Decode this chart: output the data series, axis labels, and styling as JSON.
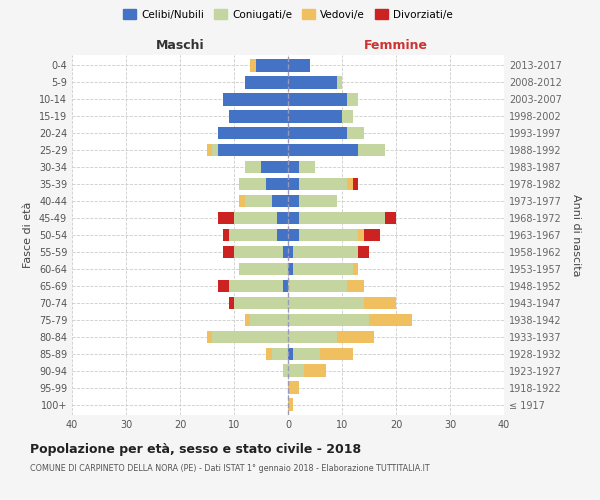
{
  "age_groups": [
    "100+",
    "95-99",
    "90-94",
    "85-89",
    "80-84",
    "75-79",
    "70-74",
    "65-69",
    "60-64",
    "55-59",
    "50-54",
    "45-49",
    "40-44",
    "35-39",
    "30-34",
    "25-29",
    "20-24",
    "15-19",
    "10-14",
    "5-9",
    "0-4"
  ],
  "birth_years": [
    "≤ 1917",
    "1918-1922",
    "1923-1927",
    "1928-1932",
    "1933-1937",
    "1938-1942",
    "1943-1947",
    "1948-1952",
    "1953-1957",
    "1958-1962",
    "1963-1967",
    "1968-1972",
    "1973-1977",
    "1978-1982",
    "1983-1987",
    "1988-1992",
    "1993-1997",
    "1998-2002",
    "2003-2007",
    "2008-2012",
    "2013-2017"
  ],
  "male": {
    "celibi": [
      0,
      0,
      0,
      0,
      0,
      0,
      0,
      1,
      0,
      1,
      2,
      2,
      3,
      4,
      5,
      13,
      13,
      11,
      12,
      8,
      6
    ],
    "coniugati": [
      0,
      0,
      1,
      3,
      14,
      7,
      10,
      10,
      9,
      9,
      9,
      8,
      5,
      5,
      3,
      1,
      0,
      0,
      0,
      0,
      0
    ],
    "vedovi": [
      0,
      0,
      0,
      1,
      1,
      1,
      0,
      0,
      0,
      0,
      0,
      0,
      1,
      0,
      0,
      1,
      0,
      0,
      0,
      0,
      1
    ],
    "divorziati": [
      0,
      0,
      0,
      0,
      0,
      0,
      1,
      2,
      0,
      2,
      1,
      3,
      0,
      0,
      0,
      0,
      0,
      0,
      0,
      0,
      0
    ]
  },
  "female": {
    "nubili": [
      0,
      0,
      0,
      1,
      0,
      0,
      0,
      0,
      1,
      1,
      2,
      2,
      2,
      2,
      2,
      13,
      11,
      10,
      11,
      9,
      4
    ],
    "coniugate": [
      0,
      0,
      3,
      5,
      9,
      15,
      14,
      11,
      11,
      12,
      11,
      16,
      7,
      9,
      3,
      5,
      3,
      2,
      2,
      1,
      0
    ],
    "vedove": [
      1,
      2,
      4,
      6,
      7,
      8,
      6,
      3,
      1,
      0,
      1,
      0,
      0,
      1,
      0,
      0,
      0,
      0,
      0,
      0,
      0
    ],
    "divorziate": [
      0,
      0,
      0,
      0,
      0,
      0,
      0,
      0,
      0,
      2,
      3,
      2,
      0,
      1,
      0,
      0,
      0,
      0,
      0,
      0,
      0
    ]
  },
  "colors": {
    "celibi": "#4472c4",
    "coniugati": "#c5d5a0",
    "vedovi": "#f0c060",
    "divorziati": "#cc2222"
  },
  "xlim": 40,
  "title": "Popolazione per età, sesso e stato civile - 2018",
  "subtitle": "COMUNE DI CARPINETO DELLA NORA (PE) - Dati ISTAT 1° gennaio 2018 - Elaborazione TUTTITALIA.IT",
  "ylabel": "Fasce di età",
  "ylabel_right": "Anni di nascita",
  "header_left": "Maschi",
  "header_right": "Femmine",
  "legend_labels": [
    "Celibi/Nubili",
    "Coniugati/e",
    "Vedovi/e",
    "Divorziati/e"
  ],
  "bg_color": "#f5f5f5",
  "plot_bg_color": "#ffffff"
}
